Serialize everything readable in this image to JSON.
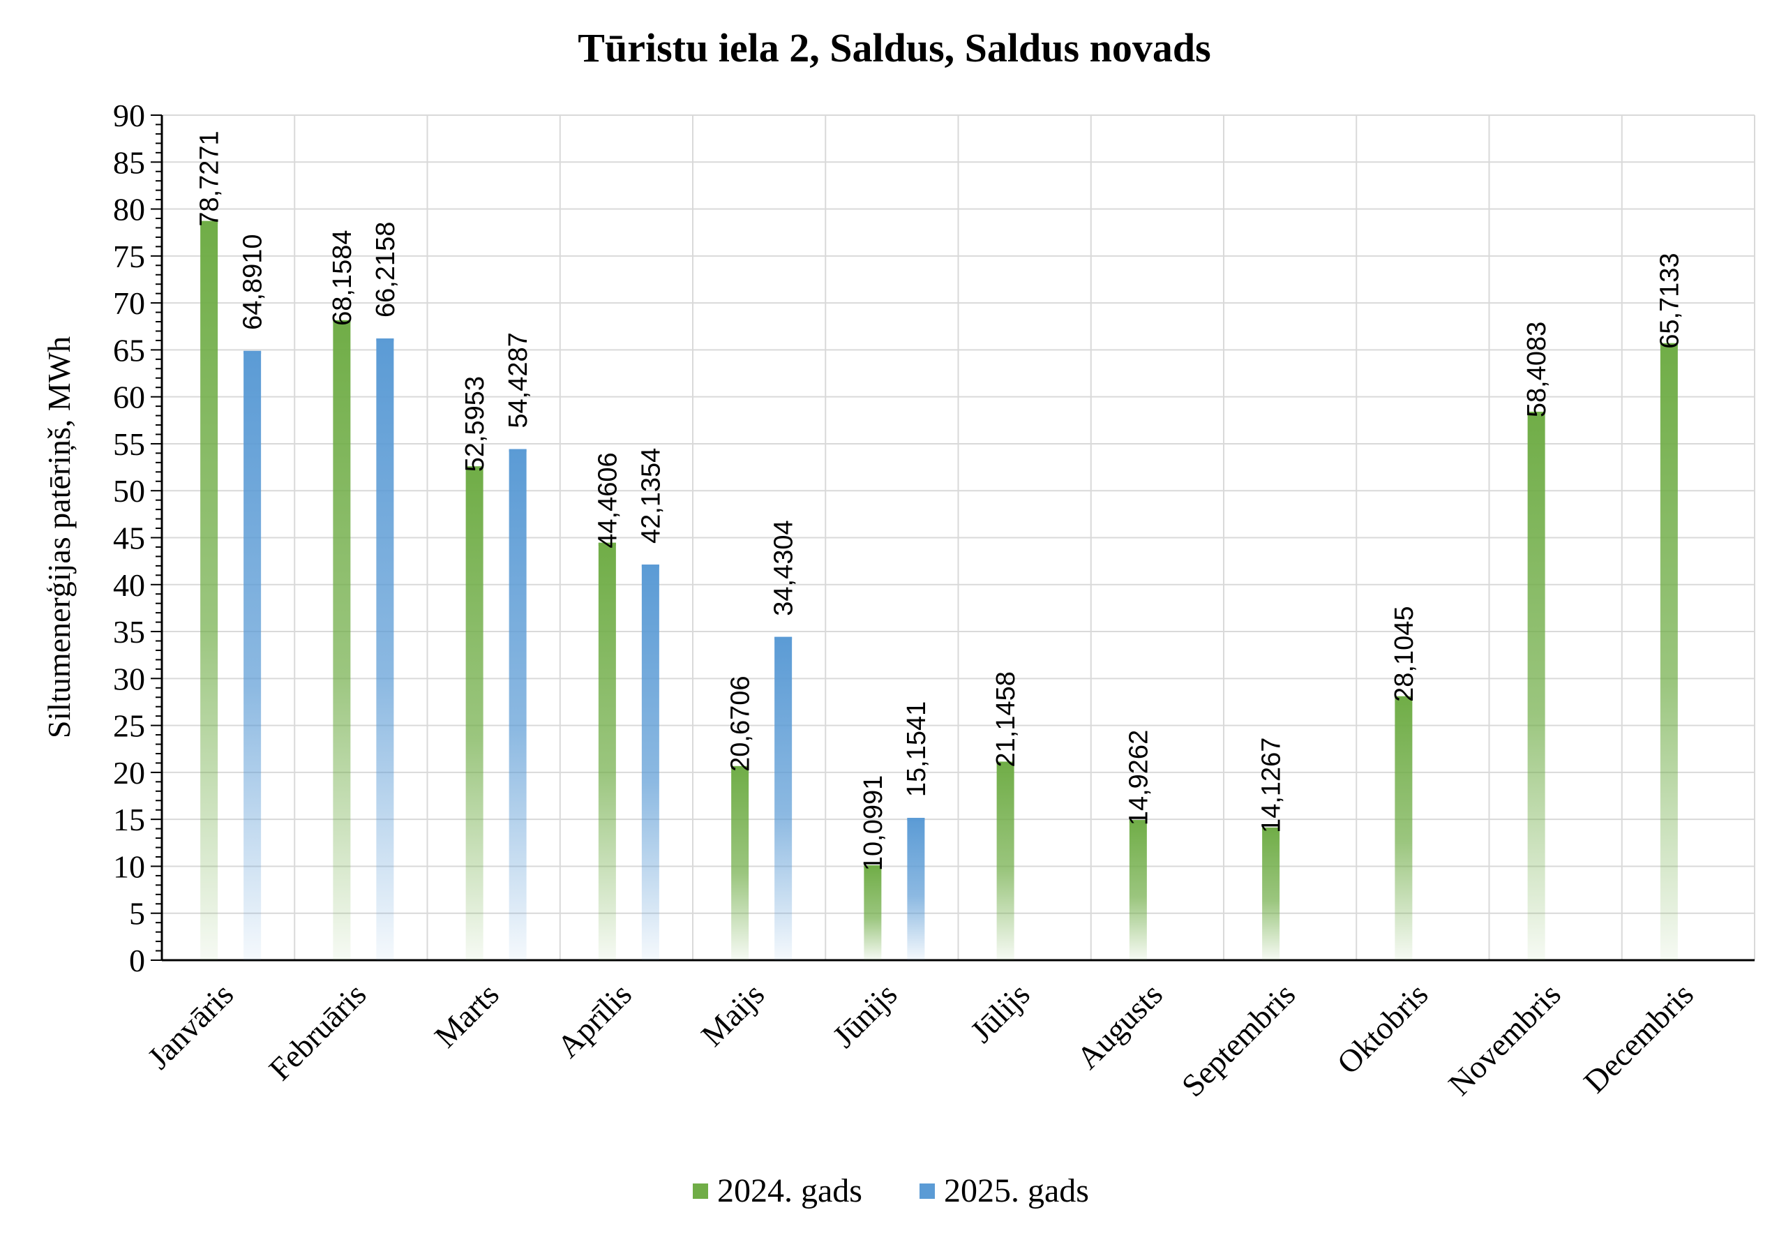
{
  "chart_data": {
    "type": "bar",
    "title": "Tūristu iela 2, Saldus, Saldus novads",
    "xlabel": "",
    "ylabel": "Siltumenerģijas patēriņš, MWh",
    "ylim": [
      0,
      90
    ],
    "ytick_step": 5,
    "categories": [
      "Janvāris",
      "Februāris",
      "Marts",
      "Aprīlis",
      "Maijs",
      "Jūnijs",
      "Jūlijs",
      "Augusts",
      "Septembris",
      "Oktobris",
      "Novembris",
      "Decembris"
    ],
    "series": [
      {
        "name": "2024. gads",
        "color": "#70ad47",
        "values": [
          78.7271,
          68.1584,
          52.5953,
          44.4606,
          20.6706,
          10.0991,
          21.1458,
          14.9262,
          14.1267,
          28.1045,
          58.4083,
          65.7133
        ],
        "labels": [
          "78,7271",
          "68,1584",
          "52,5953",
          "44,4606",
          "20,6706",
          "10,0991",
          "21,1458",
          "14,9262",
          "14,1267",
          "28,1045",
          "58,4083",
          "65,7133"
        ]
      },
      {
        "name": "2025. gads",
        "color": "#5b9bd5",
        "values": [
          64.891,
          66.2158,
          54.4287,
          42.1354,
          34.4304,
          15.1541,
          null,
          null,
          null,
          null,
          null,
          null
        ],
        "labels": [
          "64,8910",
          "66,2158",
          "54,4287",
          "42,1354",
          "34,4304",
          "15,1541",
          null,
          null,
          null,
          null,
          null,
          null
        ]
      }
    ],
    "grid": true,
    "legend_position": "bottom"
  }
}
